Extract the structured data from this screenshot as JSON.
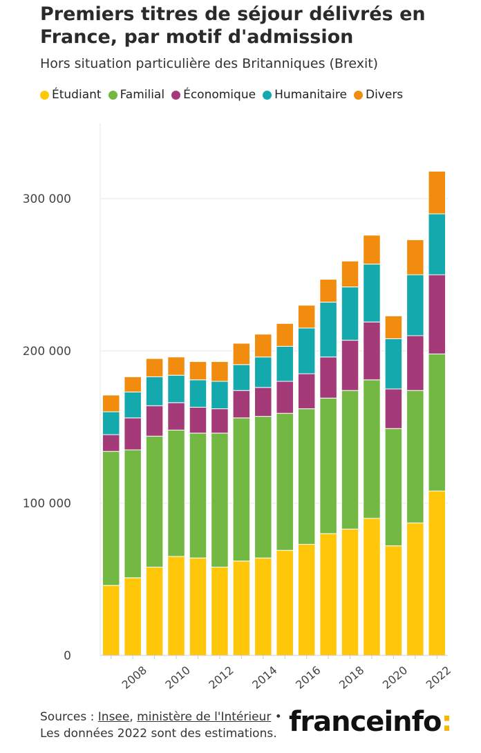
{
  "header": {
    "title": "Premiers titres de séjour délivrés en France, par motif d'admission",
    "subtitle": "Hors situation particulière des Britanniques (Brexit)"
  },
  "footer": {
    "sources_prefix": "Sources : ",
    "source_1": "Insee",
    "separator": ", ",
    "source_2": "ministère de l'Intérieur",
    "bullet": " •",
    "note": "Les données 2022 sont des estimations."
  },
  "logo": {
    "text": "franceinfo",
    "colon": ":"
  },
  "colors": {
    "etudiant": "#ffc60a",
    "familial": "#72b843",
    "economique": "#a43a78",
    "humanitaire": "#14a9ac",
    "divers": "#f28c0f"
  },
  "chart_data": {
    "type": "bar",
    "stacked": true,
    "title": "Premiers titres de séjour délivrés en France, par motif d'admission",
    "subtitle": "Hors situation particulière des Britanniques (Brexit)",
    "categories": [
      "2007",
      "2008",
      "2009",
      "2010",
      "2011",
      "2012",
      "2013",
      "2014",
      "2015",
      "2016",
      "2017",
      "2018",
      "2019",
      "2020",
      "2021",
      "2022"
    ],
    "x_tick_labels": [
      "2008",
      "2010",
      "2012",
      "2014",
      "2016",
      "2018",
      "2020",
      "2022"
    ],
    "y_ticks": [
      0,
      100000,
      200000,
      300000
    ],
    "y_tick_labels": [
      "0",
      "100 000",
      "200 000",
      "300 000"
    ],
    "ylim": [
      0,
      350000
    ],
    "grid": true,
    "legend_position": "top",
    "series": [
      {
        "name": "Étudiant",
        "color": "#ffc60a",
        "values": [
          46000,
          51000,
          58000,
          65000,
          64000,
          58000,
          62000,
          64000,
          69000,
          73000,
          80000,
          83000,
          90000,
          72000,
          87000,
          108000
        ]
      },
      {
        "name": "Familial",
        "color": "#72b843",
        "values": [
          88000,
          84000,
          86000,
          83000,
          82000,
          88000,
          94000,
          93000,
          90000,
          89000,
          89000,
          91000,
          91000,
          77000,
          87000,
          90000
        ]
      },
      {
        "name": "Économique",
        "color": "#a43a78",
        "values": [
          11000,
          21000,
          20000,
          18000,
          17000,
          16000,
          18000,
          19000,
          21000,
          23000,
          27000,
          33000,
          38000,
          26000,
          36000,
          52000
        ]
      },
      {
        "name": "Humanitaire",
        "color": "#14a9ac",
        "values": [
          15000,
          17000,
          19000,
          18000,
          18000,
          18000,
          17000,
          20000,
          23000,
          30000,
          36000,
          35000,
          38000,
          33000,
          40000,
          40000
        ]
      },
      {
        "name": "Divers",
        "color": "#f28c0f",
        "values": [
          11000,
          10000,
          12000,
          12000,
          12000,
          13000,
          14000,
          15000,
          15000,
          15000,
          15000,
          17000,
          19000,
          15000,
          23000,
          28000
        ]
      }
    ]
  }
}
